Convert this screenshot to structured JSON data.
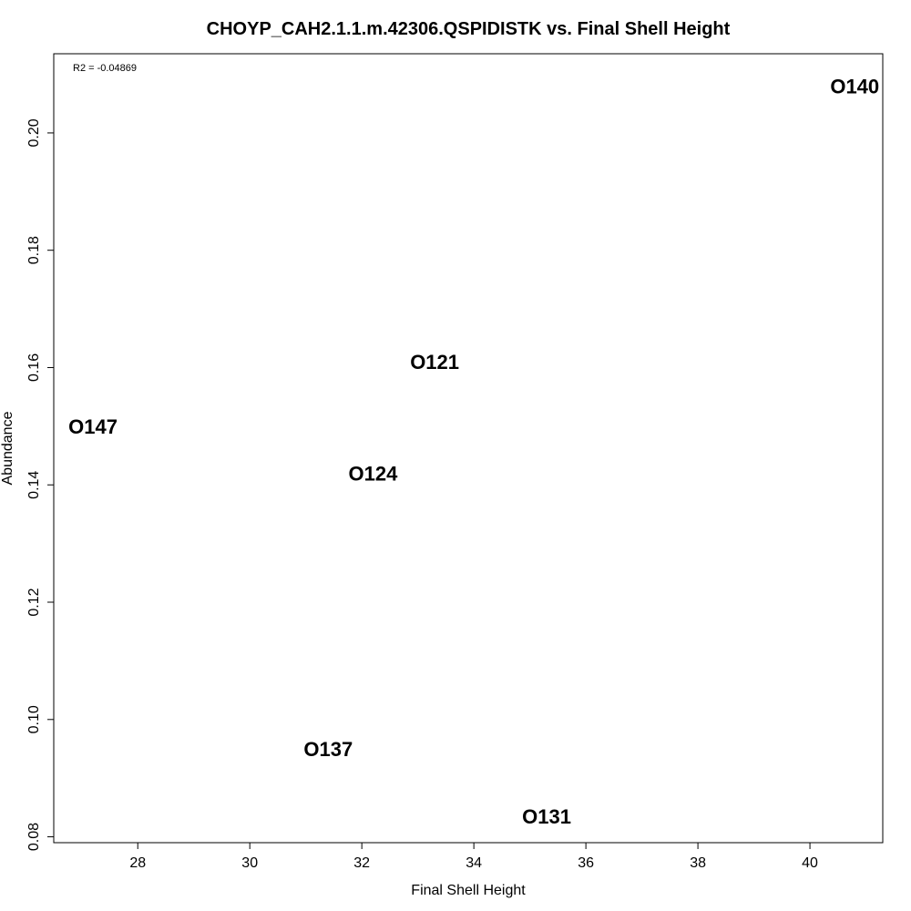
{
  "chart_data": {
    "type": "scatter",
    "title": "CHOYP_CAH2.1.1.m.42306.QSPIDISTK vs. Final Shell Height",
    "xlabel": "Final Shell Height",
    "ylabel": "Abundance",
    "annotation": "R2 = -0.04869",
    "xlim": [
      26.5,
      41.3
    ],
    "ylim": [
      0.079,
      0.2135
    ],
    "xticks": [
      28,
      30,
      32,
      34,
      36,
      38,
      40
    ],
    "yticks": [
      0.08,
      0.1,
      0.12,
      0.14,
      0.16,
      0.18,
      0.2
    ],
    "ytick_labels": [
      "0.08",
      "0.10",
      "0.12",
      "0.14",
      "0.16",
      "0.18",
      "0.20"
    ],
    "points": [
      {
        "label": "O140",
        "x": 40.8,
        "y": 0.208
      },
      {
        "label": "O121",
        "x": 33.3,
        "y": 0.161
      },
      {
        "label": "O147",
        "x": 27.2,
        "y": 0.15
      },
      {
        "label": "O124",
        "x": 32.2,
        "y": 0.142
      },
      {
        "label": "O137",
        "x": 31.4,
        "y": 0.095
      },
      {
        "label": "O131",
        "x": 35.3,
        "y": 0.0835
      }
    ],
    "grid": false,
    "legend": "none"
  }
}
